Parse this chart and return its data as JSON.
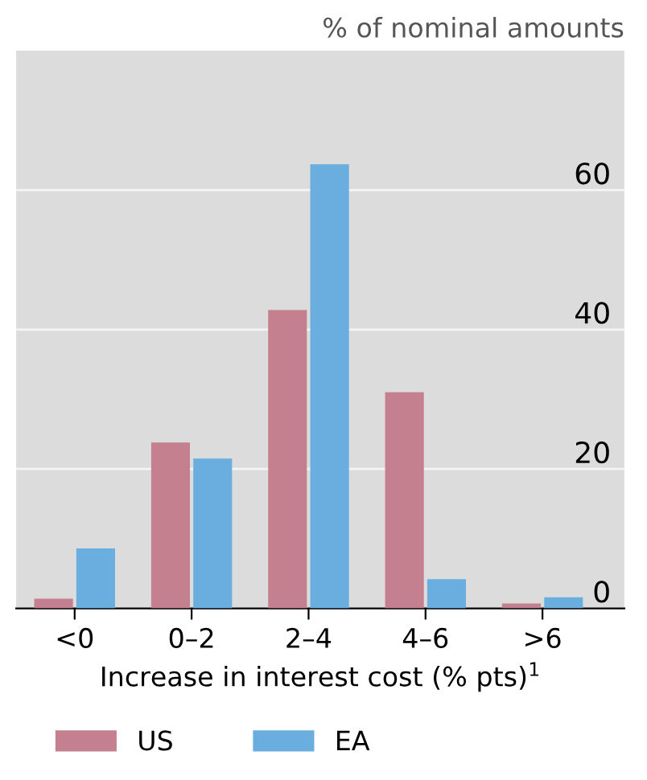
{
  "chart_data": {
    "type": "bar",
    "ylabel": "% of nominal amounts",
    "xlabel": "Increase in interest cost (% pts)$^{1}$",
    "categories": [
      "<0",
      "0–2",
      "2–4",
      "4–6",
      ">6"
    ],
    "series": [
      {
        "name": "US",
        "color": "#c4808f",
        "values": [
          1.4,
          23.8,
          42.8,
          31,
          0.7
        ]
      },
      {
        "name": "EA",
        "color": "#6aaee0",
        "values": [
          8.6,
          21.5,
          63.7,
          4.2,
          1.6
        ]
      }
    ],
    "ylim": [
      0,
      80
    ],
    "yticks": [
      0,
      20,
      40,
      60
    ],
    "grid": "y",
    "legend": "bottom"
  }
}
